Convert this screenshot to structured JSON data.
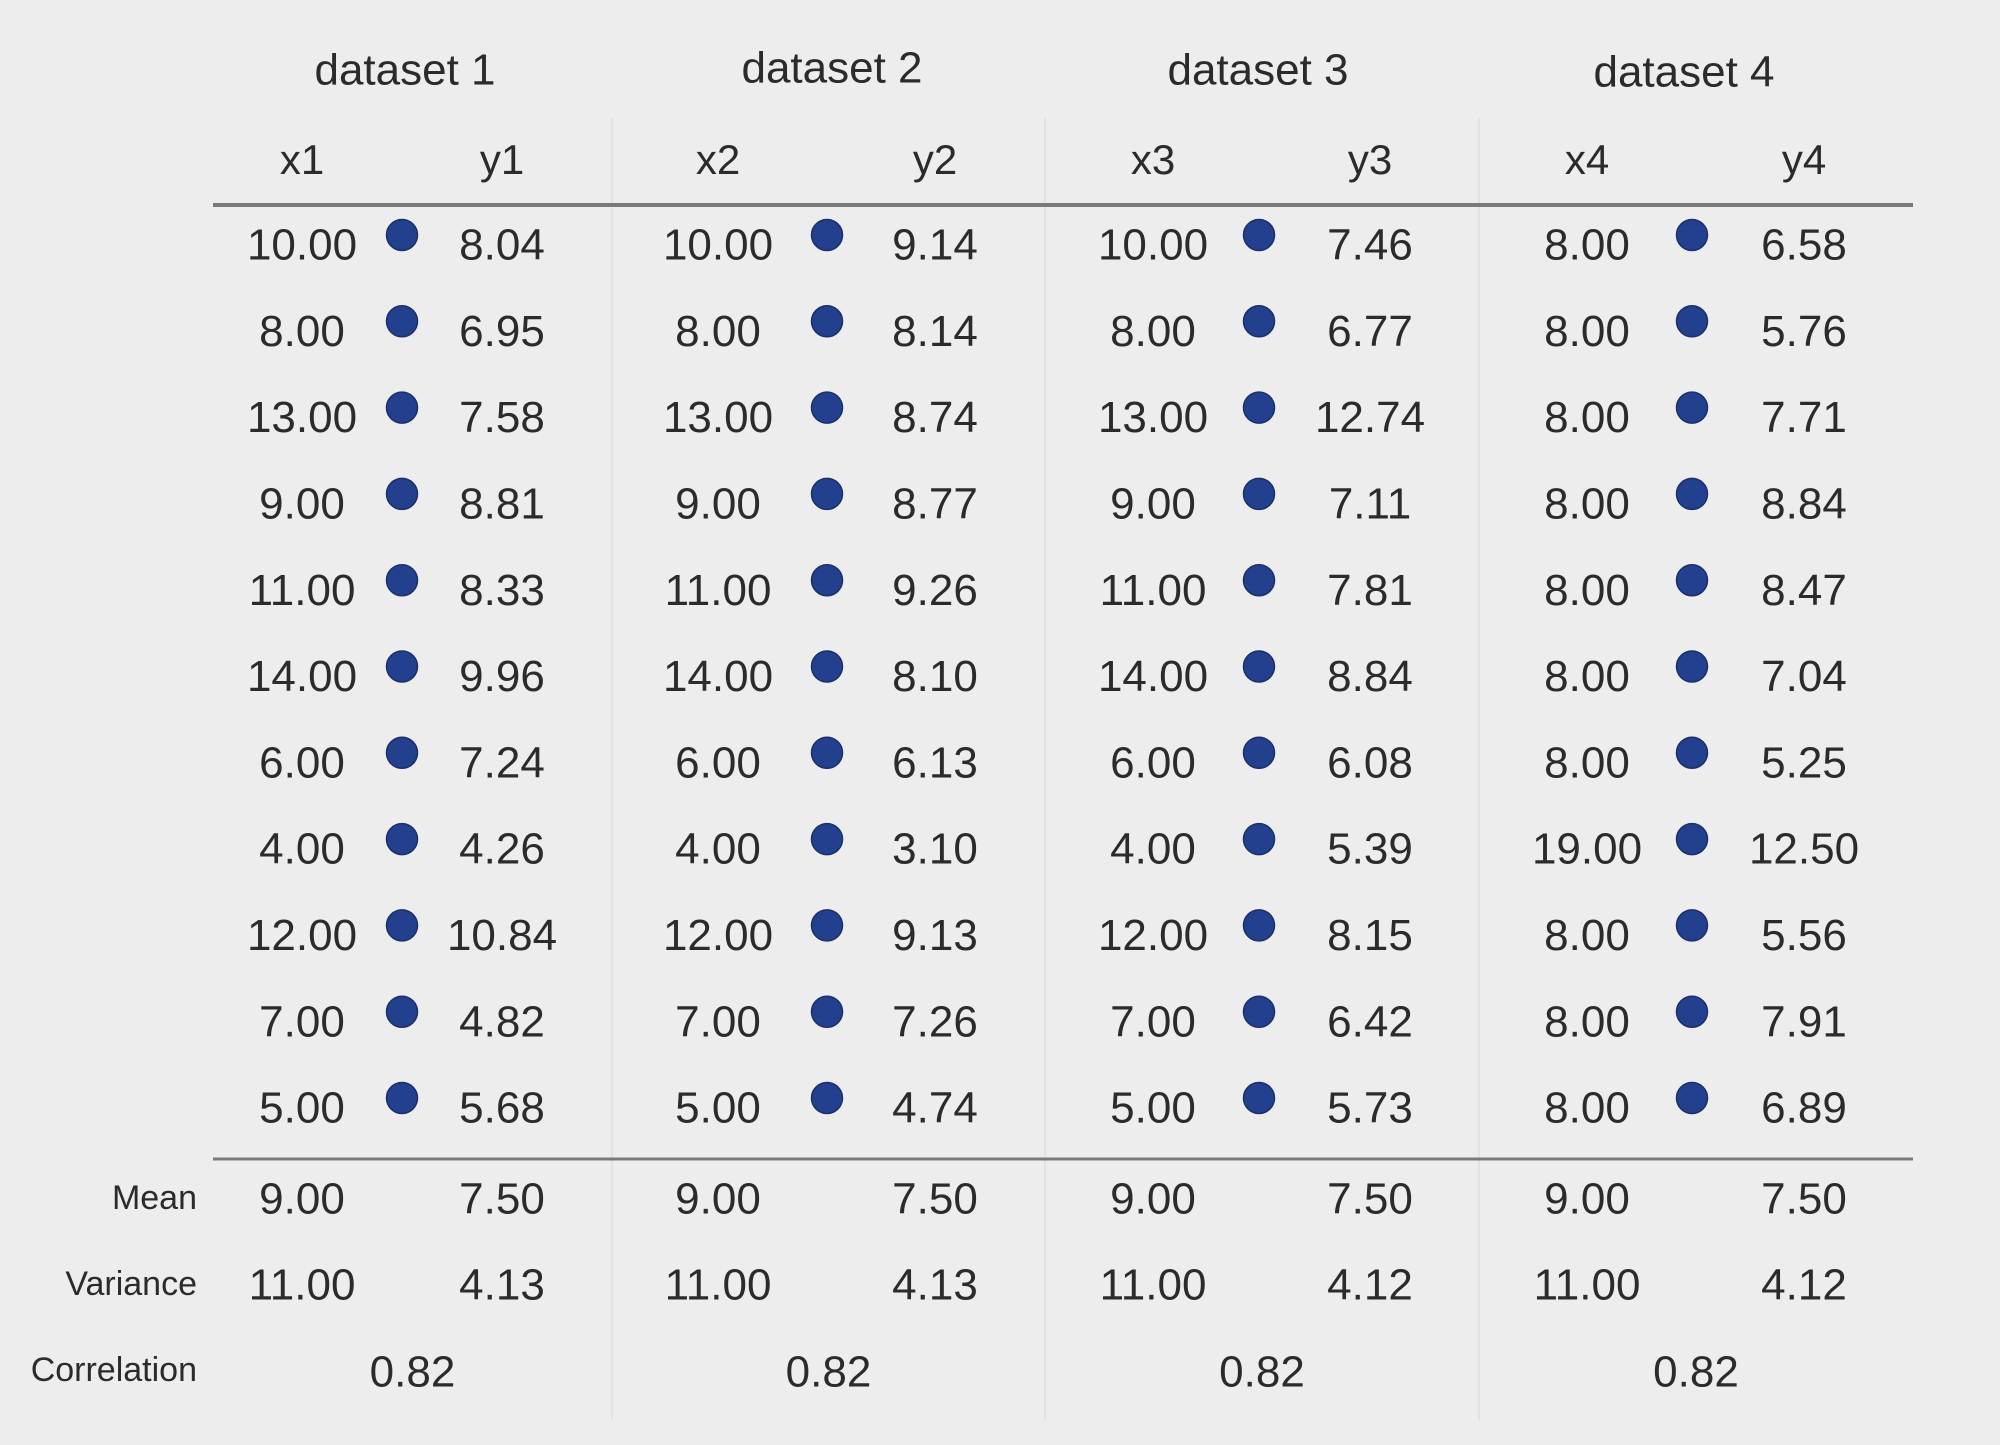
{
  "chart_data": {
    "type": "table",
    "datasets": [
      {
        "title": "dataset 1",
        "x_header": "x1",
        "y_header": "y1",
        "x": [
          "10.00",
          "8.00",
          "13.00",
          "9.00",
          "11.00",
          "14.00",
          "6.00",
          "4.00",
          "12.00",
          "7.00",
          "5.00"
        ],
        "y": [
          "8.04",
          "6.95",
          "7.58",
          "8.81",
          "8.33",
          "9.96",
          "7.24",
          "4.26",
          "10.84",
          "4.82",
          "5.68"
        ],
        "mean": [
          "9.00",
          "7.50"
        ],
        "variance": [
          "11.00",
          "4.13"
        ],
        "correlation": "0.82"
      },
      {
        "title": "dataset 2",
        "x_header": "x2",
        "y_header": "y2",
        "x": [
          "10.00",
          "8.00",
          "13.00",
          "9.00",
          "11.00",
          "14.00",
          "6.00",
          "4.00",
          "12.00",
          "7.00",
          "5.00"
        ],
        "y": [
          "9.14",
          "8.14",
          "8.74",
          "8.77",
          "9.26",
          "8.10",
          "6.13",
          "3.10",
          "9.13",
          "7.26",
          "4.74"
        ],
        "mean": [
          "9.00",
          "7.50"
        ],
        "variance": [
          "11.00",
          "4.13"
        ],
        "correlation": "0.82"
      },
      {
        "title": "dataset 3",
        "x_header": "x3",
        "y_header": "y3",
        "x": [
          "10.00",
          "8.00",
          "13.00",
          "9.00",
          "11.00",
          "14.00",
          "6.00",
          "4.00",
          "12.00",
          "7.00",
          "5.00"
        ],
        "y": [
          "7.46",
          "6.77",
          "12.74",
          "7.11",
          "7.81",
          "8.84",
          "6.08",
          "5.39",
          "8.15",
          "6.42",
          "5.73"
        ],
        "mean": [
          "9.00",
          "7.50"
        ],
        "variance": [
          "11.00",
          "4.12"
        ],
        "correlation": "0.82"
      },
      {
        "title": "dataset 4",
        "x_header": "x4",
        "y_header": "y4",
        "x": [
          "8.00",
          "8.00",
          "8.00",
          "8.00",
          "8.00",
          "8.00",
          "8.00",
          "19.00",
          "8.00",
          "8.00",
          "8.00"
        ],
        "y": [
          "6.58",
          "5.76",
          "7.71",
          "8.84",
          "8.47",
          "7.04",
          "5.25",
          "12.50",
          "5.56",
          "7.91",
          "6.89"
        ],
        "mean": [
          "9.00",
          "7.50"
        ],
        "variance": [
          "11.00",
          "4.12"
        ],
        "correlation": "0.82"
      }
    ],
    "summary_labels": [
      "Mean",
      "Variance",
      "Correlation"
    ]
  },
  "colors": {
    "background": "#ededed",
    "dot": "#23408e",
    "rule": "#7a7a7a",
    "separator": "#e2e2e2",
    "text": "#2b2b2b"
  }
}
